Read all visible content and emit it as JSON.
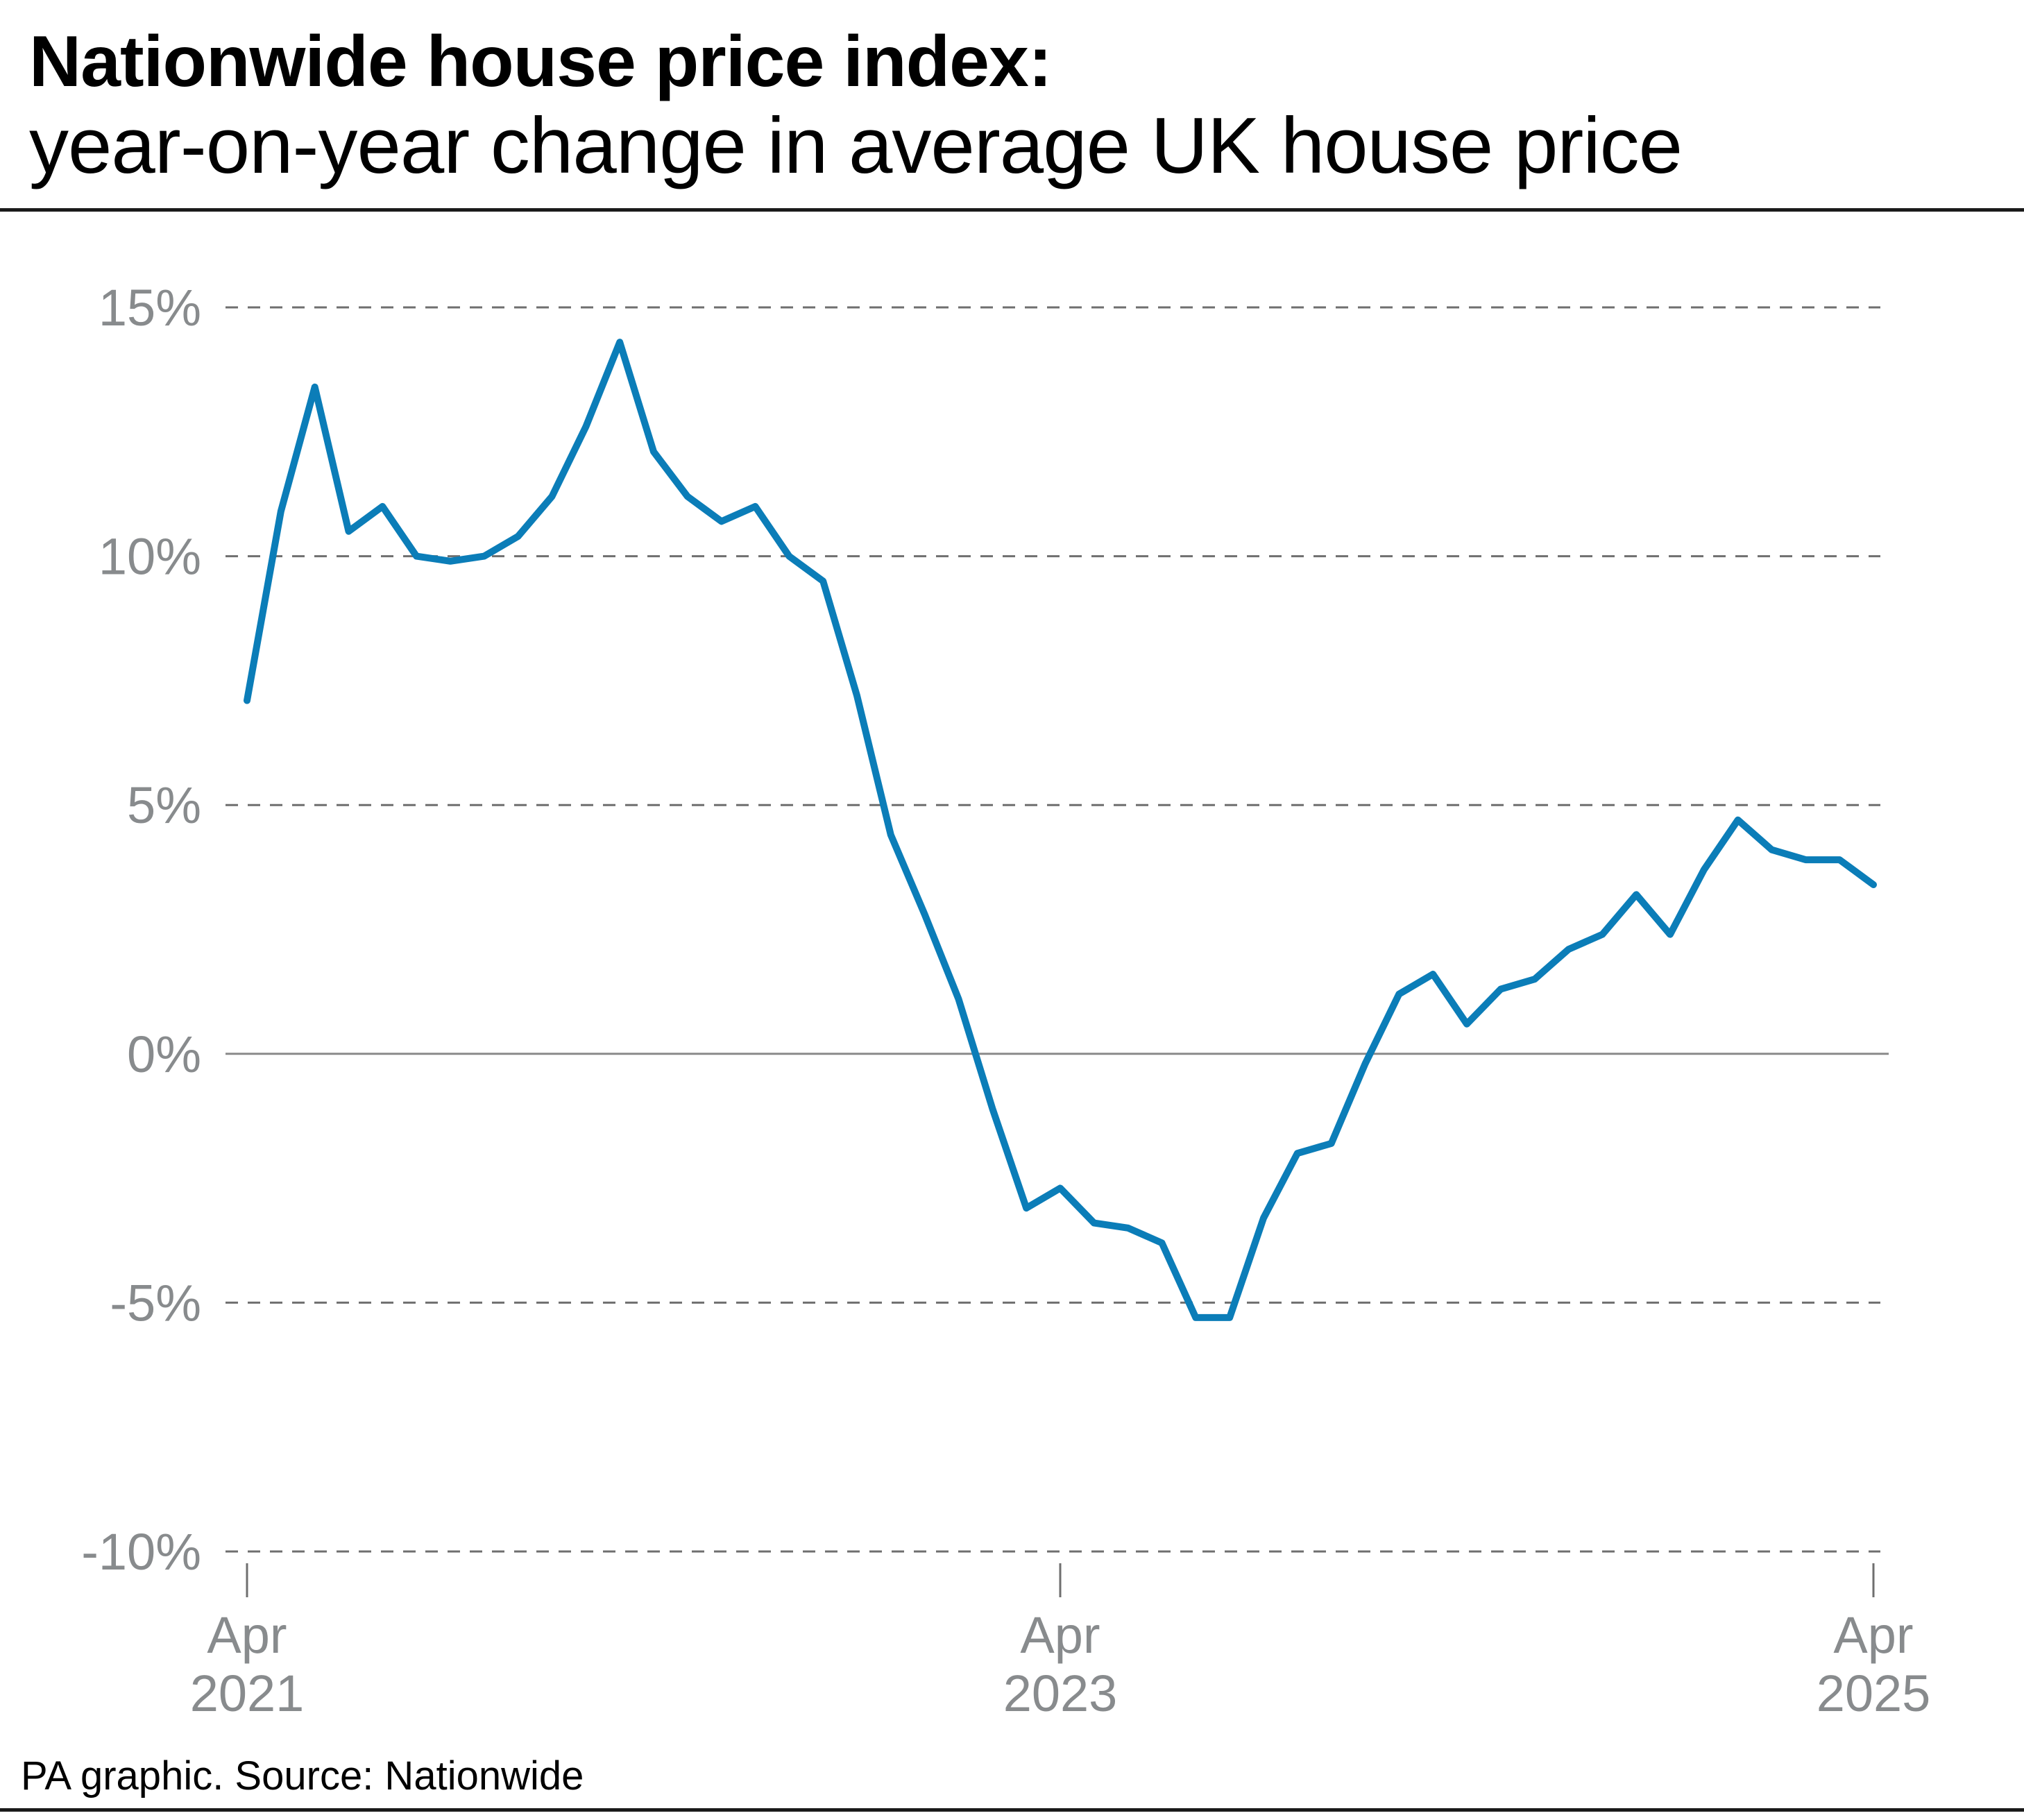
{
  "header": {
    "title": "Nationwide house price index:",
    "subtitle": "year-on-year change in average UK house price"
  },
  "footer": {
    "source": "PA graphic. Source: Nationwide"
  },
  "colors": {
    "line": "#0b7db8",
    "grid": "#6f6f6f",
    "zero_line": "#8a8a8a",
    "tick_text": "#888b8d",
    "text": "#000000"
  },
  "chart_data": {
    "type": "line",
    "title": "Nationwide house price index:",
    "subtitle": "year-on-year change in average UK house price",
    "xlabel": "",
    "ylabel": "",
    "y_unit": "%",
    "ylim": [
      -10,
      15
    ],
    "yticks": [
      15,
      10,
      5,
      0,
      -5,
      -10
    ],
    "ytick_labels": [
      "15%",
      "10%",
      "5%",
      "0%",
      "-5%",
      "-10%"
    ],
    "grid": "dashed horizontal",
    "legend": "none",
    "x_ticks": [
      {
        "date": "2021-04",
        "line1": "Apr",
        "line2": "2021"
      },
      {
        "date": "2023-04",
        "line1": "Apr",
        "line2": "2023"
      },
      {
        "date": "2025-04",
        "line1": "Apr",
        "line2": "2025"
      }
    ],
    "series": [
      {
        "points": [
          [
            "2021-04",
            7.1
          ],
          [
            "2021-05",
            10.9
          ],
          [
            "2021-06",
            13.4
          ],
          [
            "2021-07",
            10.5
          ],
          [
            "2021-08",
            11.0
          ],
          [
            "2021-09",
            10.0
          ],
          [
            "2021-10",
            9.9
          ],
          [
            "2021-11",
            10.0
          ],
          [
            "2021-12",
            10.4
          ],
          [
            "2022-01",
            11.2
          ],
          [
            "2022-02",
            12.6
          ],
          [
            "2022-03",
            14.3
          ],
          [
            "2022-04",
            12.1
          ],
          [
            "2022-05",
            11.2
          ],
          [
            "2022-06",
            10.7
          ],
          [
            "2022-07",
            11.0
          ],
          [
            "2022-08",
            10.0
          ],
          [
            "2022-09",
            9.5
          ],
          [
            "2022-10",
            7.2
          ],
          [
            "2022-11",
            4.4
          ],
          [
            "2022-12",
            2.8
          ],
          [
            "2023-01",
            1.1
          ],
          [
            "2023-02",
            -1.1
          ],
          [
            "2023-03",
            -3.1
          ],
          [
            "2023-04",
            -2.7
          ],
          [
            "2023-05",
            -3.4
          ],
          [
            "2023-06",
            -3.5
          ],
          [
            "2023-07",
            -3.8
          ],
          [
            "2023-08",
            -5.3
          ],
          [
            "2023-09",
            -5.3
          ],
          [
            "2023-10",
            -3.3
          ],
          [
            "2023-11",
            -2.0
          ],
          [
            "2023-12",
            -1.8
          ],
          [
            "2024-01",
            -0.2
          ],
          [
            "2024-02",
            1.2
          ],
          [
            "2024-03",
            1.6
          ],
          [
            "2024-04",
            0.6
          ],
          [
            "2024-05",
            1.3
          ],
          [
            "2024-06",
            1.5
          ],
          [
            "2024-07",
            2.1
          ],
          [
            "2024-08",
            2.4
          ],
          [
            "2024-09",
            3.2
          ],
          [
            "2024-10",
            2.4
          ],
          [
            "2024-11",
            3.7
          ],
          [
            "2024-12",
            4.7
          ],
          [
            "2025-01",
            4.1
          ],
          [
            "2025-02",
            3.9
          ],
          [
            "2025-03",
            3.9
          ],
          [
            "2025-04",
            3.4
          ]
        ]
      }
    ]
  }
}
